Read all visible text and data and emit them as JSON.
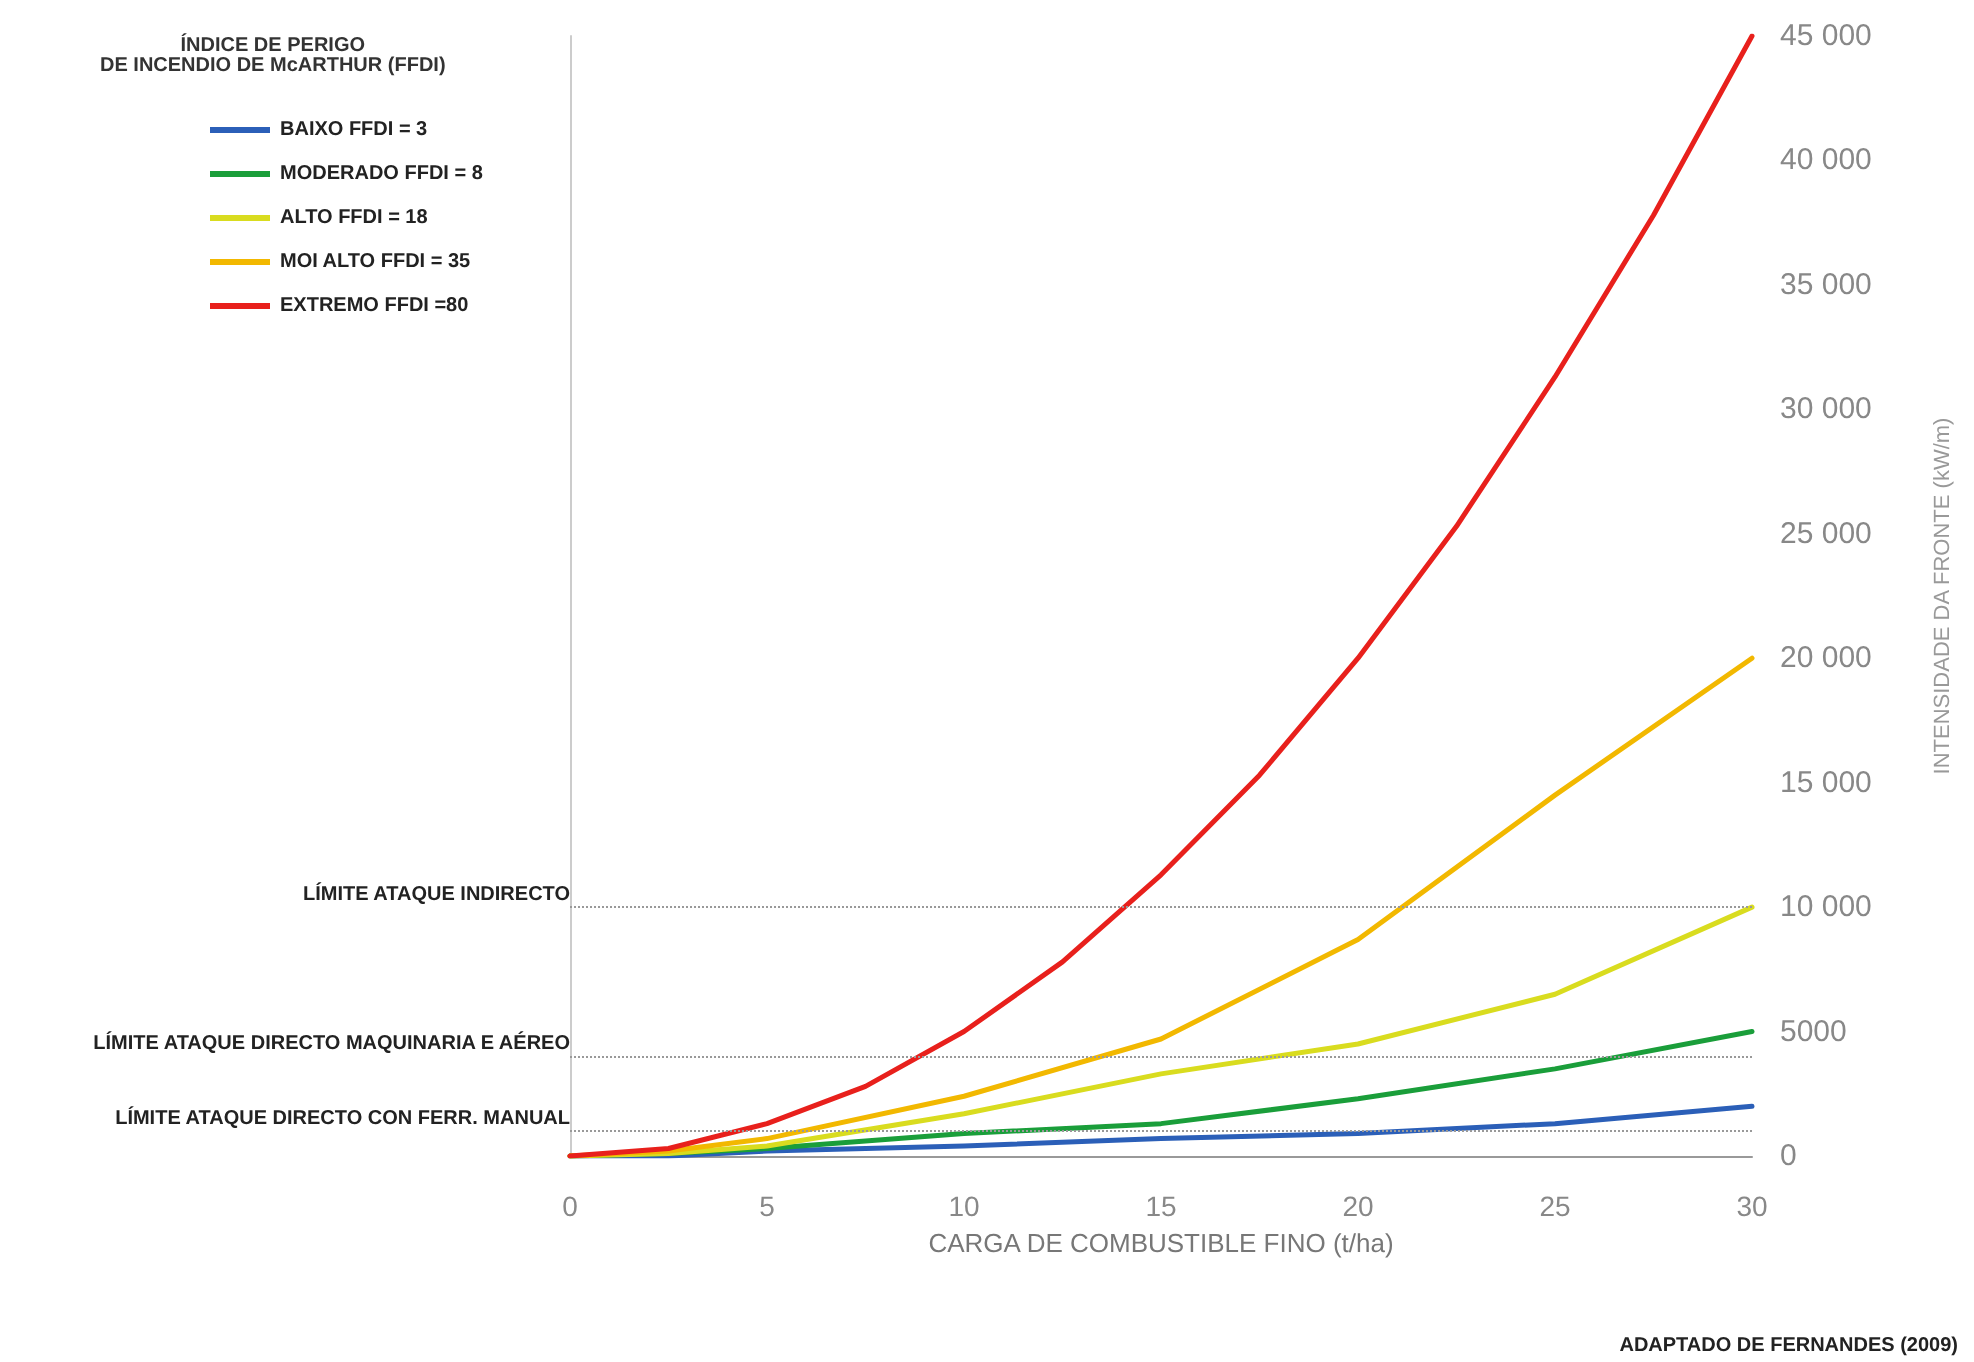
{
  "chart_data": {
    "type": "line",
    "xlabel": "CARGA DE COMBUSTIBLE FINO (t/ha)",
    "ylabel": "INTENSIDADE DA FRONTE (kW/m)",
    "legend_title": "ÍNDICE DE PERIGO\nDE INCENDIO DE McARTHUR (FFDI)",
    "annotations": [
      "ADAPTADO DE FERNANDES (2009)"
    ],
    "xlim": [
      0,
      30
    ],
    "xticks": [
      0,
      5,
      10,
      15,
      20,
      25,
      30
    ],
    "ylim": [
      0,
      45000
    ],
    "yticks": [
      0,
      5000,
      {
        "value": 10000,
        "label": "10 000"
      },
      {
        "value": 15000,
        "label": "15 000"
      },
      {
        "value": 20000,
        "label": "20 000"
      },
      {
        "value": 25000,
        "label": "25 000"
      },
      {
        "value": 30000,
        "label": "30 000"
      },
      {
        "value": 35000,
        "label": "35 000"
      },
      {
        "value": 40000,
        "label": "40 000"
      },
      {
        "value": 45000,
        "label": "45 000"
      }
    ],
    "grid": false,
    "legend": "top left",
    "marker": "none",
    "line_style": "solid",
    "series": [
      {
        "name": "BAIXO FFDI = 3",
        "color": "#2b5fb8",
        "x": [
          0,
          2.5,
          5,
          10,
          15,
          20,
          25,
          30
        ],
        "values": [
          0,
          0,
          200,
          400,
          700,
          900,
          1300,
          2000
        ]
      },
      {
        "name": "MODERADO FFDI = 8",
        "color": "#1a9e3a",
        "x": [
          0,
          2.5,
          5,
          10,
          15,
          20,
          25,
          30
        ],
        "values": [
          0,
          100,
          300,
          900,
          1300,
          2300,
          3500,
          5000
        ]
      },
      {
        "name": "ALTO FFDI = 18",
        "color": "#d9dc1f",
        "x": [
          0,
          2.5,
          5,
          10,
          15,
          20,
          25,
          30
        ],
        "values": [
          0,
          100,
          400,
          1700,
          3300,
          4500,
          6500,
          10000
        ]
      },
      {
        "name": "MOI ALTO FFDI = 35",
        "color": "#f2b800",
        "x": [
          0,
          2.5,
          5,
          10,
          15,
          20,
          25,
          30
        ],
        "values": [
          0,
          200,
          700,
          2400,
          4700,
          8700,
          14500,
          20000
        ]
      },
      {
        "name": "EXTREMO FFDI =80",
        "color": "#e8201c",
        "x": [
          0,
          2.5,
          5,
          7.5,
          10,
          12.5,
          15,
          17.5,
          20,
          22.5,
          25,
          27.5,
          30
        ],
        "values": [
          0,
          300,
          1300,
          2800,
          5000,
          7800,
          11300,
          15300,
          20000,
          25300,
          31300,
          37800,
          45000
        ]
      }
    ],
    "ref_lines": [
      {
        "axis": "y",
        "value": 10000,
        "label": "LÍMITE ATAQUE INDIRECTO",
        "color": "#999999",
        "line_style": "dotted"
      },
      {
        "axis": "y",
        "value": 4000,
        "label": "LÍMITE ATAQUE DIRECTO MAQUINARIA E AÉREO",
        "color": "#999999",
        "line_style": "dotted"
      },
      {
        "axis": "y",
        "value": 1000,
        "label": "LÍMITE ATAQUE DIRECTO CON FERR. MANUAL",
        "color": "#999999",
        "line_style": "dotted"
      }
    ]
  }
}
